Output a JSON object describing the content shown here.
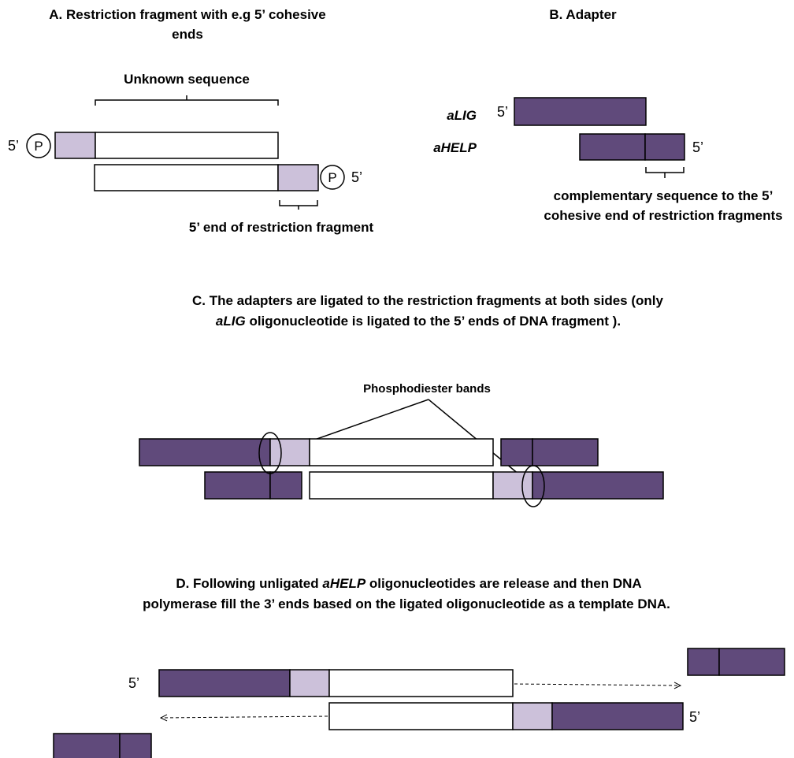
{
  "colors": {
    "dark_purple": "#604a7b",
    "light_purple": "#ccc1da",
    "outline": "#000000",
    "background": "#ffffff"
  },
  "panelA": {
    "title_line1": "A. Restriction fragment with e.g  5’ cohesive",
    "title_line2": "ends",
    "unknown_label": "Unknown sequence",
    "five_prime_left": "5’",
    "five_prime_right": "5’",
    "phosphate": "P",
    "end_label": "5’ end of restriction  fragment"
  },
  "panelB": {
    "title": "B. Adapter",
    "alig_label": "aLIG",
    "ahelp_label": "aHELP",
    "five_prime_top": "5’",
    "five_prime_bottom": "5’",
    "comp_line1": "complementary sequence to the 5’",
    "comp_line2": "cohesive end of restriction  fragments"
  },
  "panelC": {
    "caption_line1": "C.  The adapters  are ligated to the restriction fragments at both sides (only",
    "caption_line2_italic": "aLIG",
    "caption_line2_rest": " oligonucleotide  is ligated to the  5’ ends of DNA fragment ).",
    "bands_label": "Phosphodiester bands"
  },
  "panelD": {
    "caption_line1_a": "D.  Following unligated  ",
    "caption_line1_italic": "aHELP",
    "caption_line1_b": " oligonucleotides are release and then DNA",
    "caption_line2": "polymerase fill  the 3’ ends based on the ligated oligonucleotide as a template DNA.",
    "five_prime_top": "5’",
    "five_prime_bottom": "5’"
  }
}
